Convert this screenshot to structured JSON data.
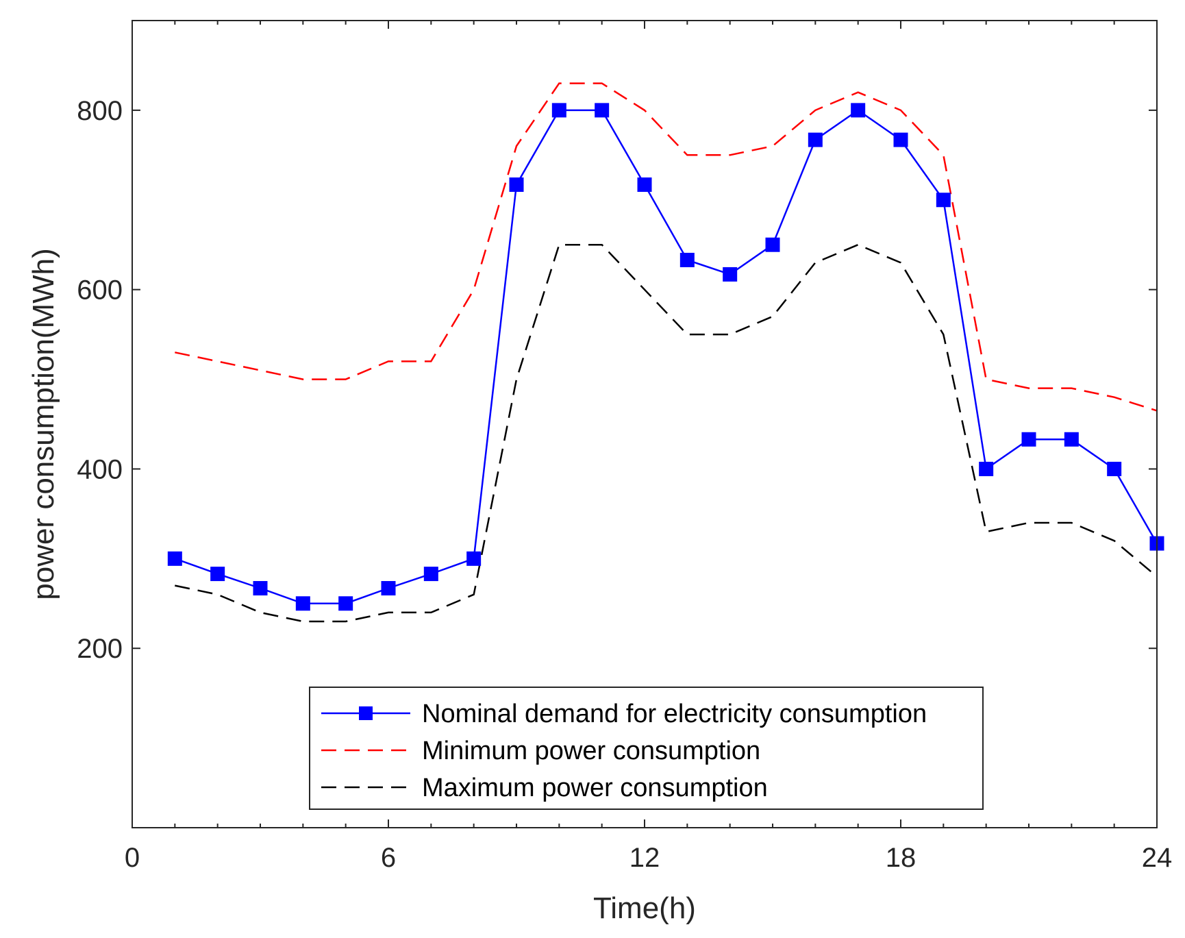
{
  "chart_data": {
    "type": "line",
    "title": "",
    "xlabel": "Time(h)",
    "ylabel": "power consumption(MWh)",
    "xlim": [
      0,
      24
    ],
    "ylim": [
      0,
      900
    ],
    "xticks": [
      0,
      6,
      12,
      18,
      24
    ],
    "xtick_labels": [
      "0",
      "6",
      "12",
      "18",
      "24"
    ],
    "yticks": [
      200,
      400,
      600,
      800
    ],
    "ytick_labels": [
      "200",
      "400",
      "600",
      "800"
    ],
    "minor_xticks": [
      1,
      2,
      3,
      4,
      5,
      7,
      8,
      9,
      10,
      11,
      13,
      14,
      15,
      16,
      17,
      19,
      20,
      21,
      22,
      23
    ],
    "grid": false,
    "legend_position": "bottom-center",
    "x": [
      1,
      2,
      3,
      4,
      5,
      6,
      7,
      8,
      9,
      10,
      11,
      12,
      13,
      14,
      15,
      16,
      17,
      18,
      19,
      20,
      21,
      22,
      23,
      24
    ],
    "series": [
      {
        "name": "Nominal demand for electricity consumption",
        "color": "#0000ff",
        "style": "solid",
        "marker": "square",
        "values": [
          300,
          283,
          267,
          250,
          250,
          267,
          283,
          300,
          717,
          800,
          800,
          717,
          633,
          617,
          650,
          767,
          800,
          767,
          700,
          400,
          433,
          433,
          400,
          317
        ]
      },
      {
        "name": "Minimum power consumption",
        "color": "#ff0000",
        "style": "dashed",
        "marker": "none",
        "values": [
          530,
          520,
          510,
          500,
          500,
          520,
          520,
          600,
          760,
          830,
          830,
          800,
          750,
          750,
          760,
          800,
          820,
          800,
          750,
          500,
          490,
          490,
          480,
          465
        ]
      },
      {
        "name": "Maximum power consumption",
        "color": "#000000",
        "style": "dashed",
        "marker": "none",
        "values": [
          270,
          260,
          240,
          230,
          230,
          240,
          240,
          260,
          500,
          650,
          650,
          600,
          550,
          550,
          570,
          630,
          650,
          630,
          550,
          330,
          340,
          340,
          320,
          280
        ]
      }
    ]
  }
}
